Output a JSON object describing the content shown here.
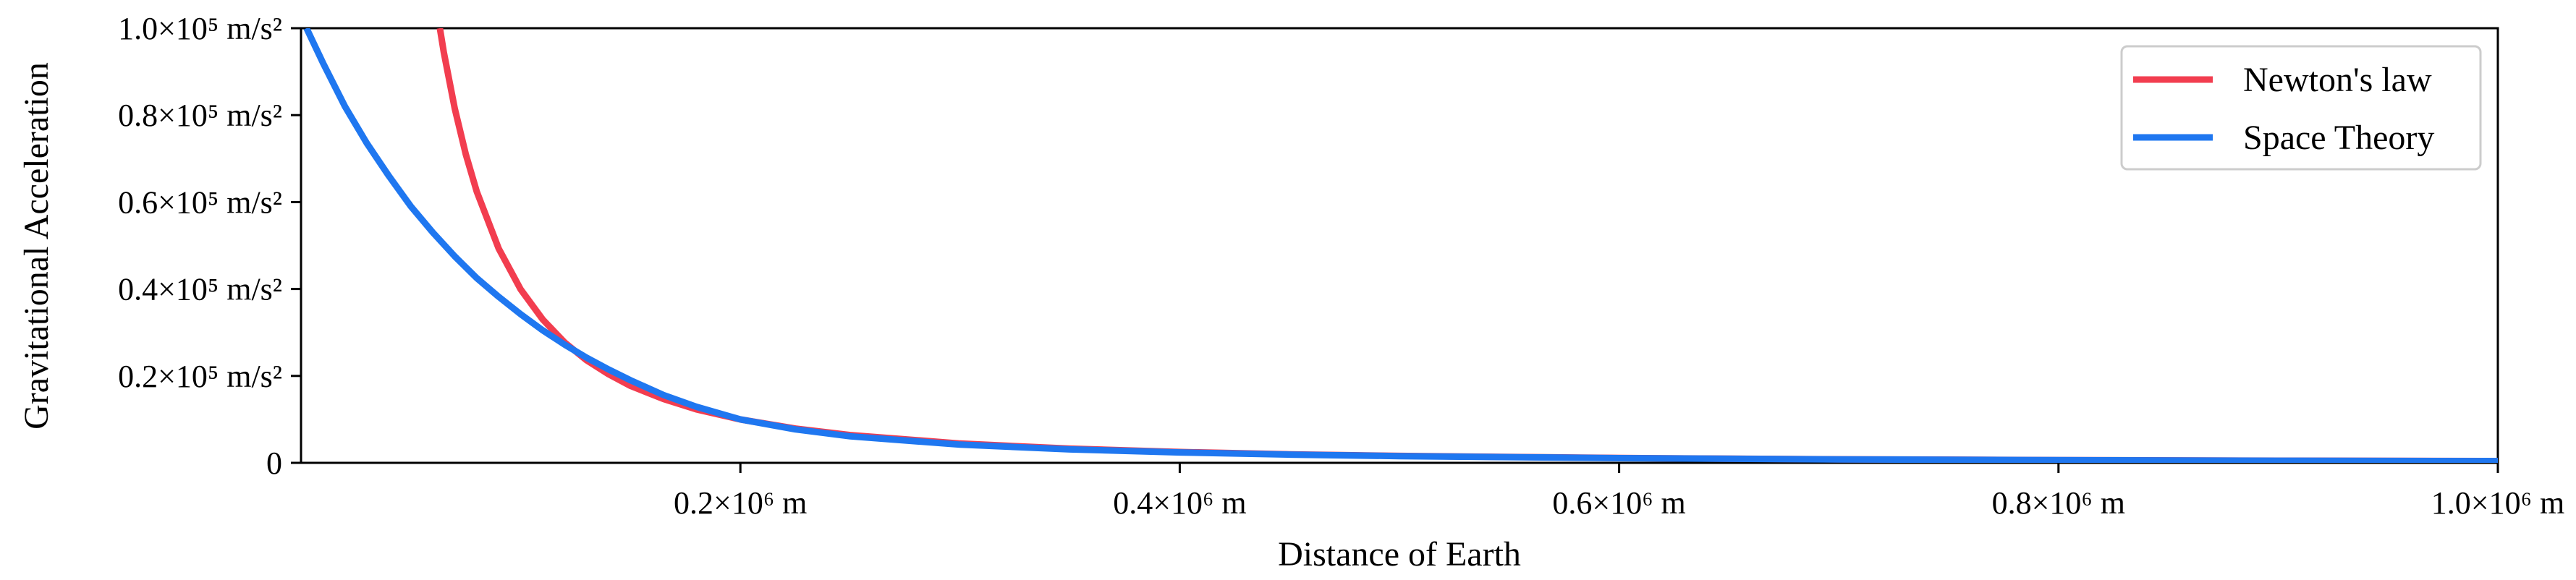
{
  "chart_data": {
    "type": "line",
    "title": "",
    "xlabel": "Distance of Earth",
    "ylabel": "Gravitational Acceleration",
    "xlim": [
      0,
      1000000
    ],
    "ylim": [
      0,
      100000
    ],
    "x_ticks": [
      {
        "value": 200000,
        "label": "0.2×10⁶ m"
      },
      {
        "value": 400000,
        "label": "0.4×10⁶ m"
      },
      {
        "value": 600000,
        "label": "0.6×10⁶ m"
      },
      {
        "value": 800000,
        "label": "0.8×10⁶ m"
      },
      {
        "value": 1000000,
        "label": "1.0×10⁶ m"
      }
    ],
    "y_ticks": [
      {
        "value": 0,
        "label": "0"
      },
      {
        "value": 20000,
        "label": "0.2×10⁵ m/s²"
      },
      {
        "value": 40000,
        "label": "0.4×10⁵ m/s²"
      },
      {
        "value": 60000,
        "label": "0.6×10⁵ m/s²"
      },
      {
        "value": 80000,
        "label": "0.8×10⁵ m/s²"
      },
      {
        "value": 100000,
        "label": "1.0×10⁵ m/s²"
      }
    ],
    "grid": false,
    "legend_position": "top-right",
    "series": [
      {
        "name": "Newton's law",
        "color": "#f23d4f",
        "x": [
          63200,
          65000,
          70000,
          75000,
          80000,
          90000,
          100000,
          110000,
          120000,
          130000,
          140000,
          150000,
          165000,
          180000,
          200000,
          225000,
          250000,
          300000,
          350000,
          400000,
          450000,
          500000,
          600000,
          700000,
          800000,
          900000,
          1000000
        ],
        "y": [
          100000,
          94500,
          81500,
          71000,
          62400,
          49300,
          39900,
          33000,
          27700,
          23600,
          20400,
          17700,
          14700,
          12300,
          9980,
          7890,
          6390,
          4440,
          3260,
          2500,
          1970,
          1600,
          1110,
          815,
          624,
          493,
          399
        ]
      },
      {
        "name": "Space Theory",
        "color": "#1f77f0",
        "x": [
          2500,
          10000,
          20000,
          30000,
          40000,
          50000,
          60000,
          70000,
          80000,
          90000,
          100000,
          110000,
          120000,
          130000,
          140000,
          150000,
          165000,
          180000,
          200000,
          225000,
          250000,
          300000,
          350000,
          400000,
          450000,
          500000,
          600000,
          700000,
          800000,
          900000,
          1000000
        ],
        "y": [
          100000,
          92000,
          82000,
          73500,
          66000,
          59000,
          53000,
          47500,
          42500,
          38200,
          34200,
          30500,
          27200,
          24200,
          21500,
          19000,
          15600,
          12900,
          10000,
          7700,
          6100,
          4200,
          3100,
          2400,
          1900,
          1550,
          1080,
          800,
          615,
          488,
          396
        ]
      }
    ]
  }
}
